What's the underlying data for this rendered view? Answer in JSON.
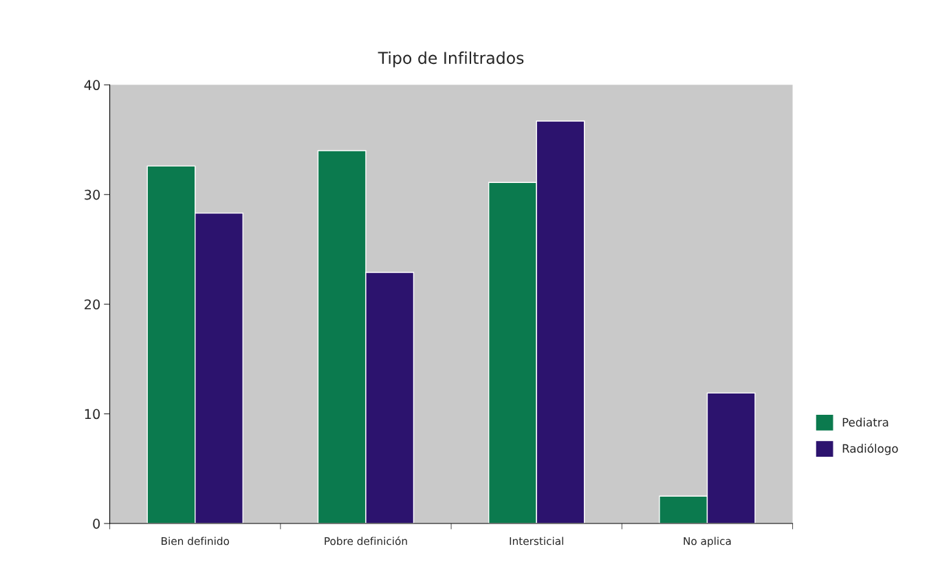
{
  "chart_data": {
    "type": "bar",
    "title": "Tipo de Infiltrados",
    "categories": [
      "Bien definido",
      "Pobre definición",
      "Intersticial",
      "No aplica"
    ],
    "series": [
      {
        "name": "Pediatra",
        "color": "#0b7a4e",
        "values": [
          32.6,
          34.0,
          31.1,
          2.5
        ]
      },
      {
        "name": "Radiólogo",
        "color": "#2c136e",
        "values": [
          28.3,
          22.9,
          36.7,
          11.9
        ]
      }
    ],
    "ylim": [
      0,
      40
    ],
    "yticks": [
      0,
      10,
      20,
      30,
      40
    ],
    "grid": false,
    "legend": "right"
  }
}
